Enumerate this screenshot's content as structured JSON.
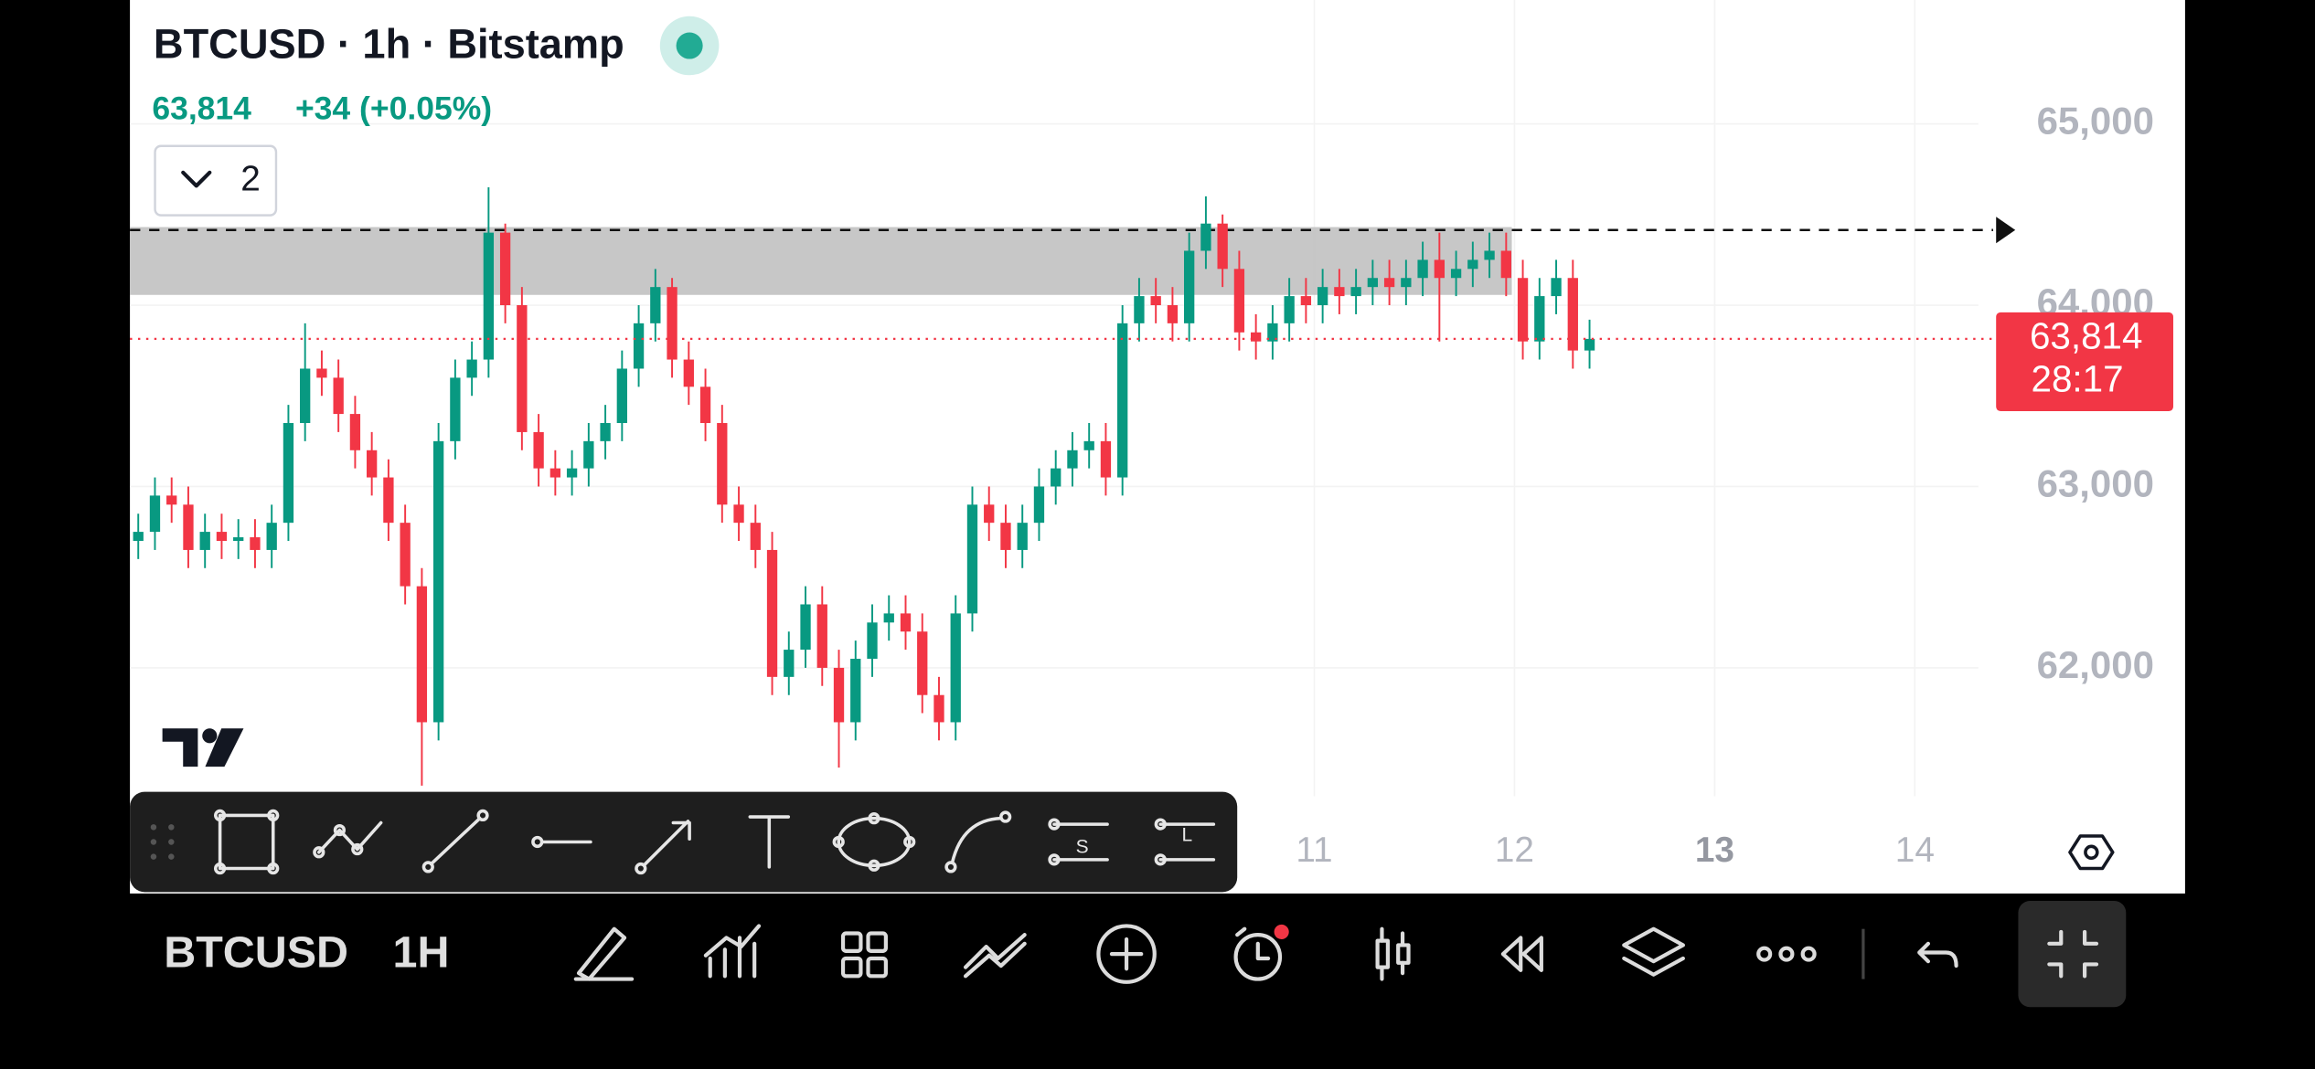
{
  "header": {
    "title": "BTCUSD · 1h · Bitstamp",
    "price": "63,814",
    "change": "+34 (+0.05%)",
    "indicators": "2"
  },
  "chart_data": {
    "type": "candlestick",
    "open": [
      62700,
      62750,
      62950,
      62900,
      62650,
      62750,
      62700,
      62720,
      62650,
      62800,
      63350,
      63650,
      63600,
      63400,
      63200,
      63050,
      62800,
      62450,
      61700,
      63250,
      63600,
      63700,
      64400,
      64000,
      63300,
      63100,
      63050,
      63100,
      63250,
      63350,
      63650,
      63900,
      64100,
      63700,
      63550,
      63350,
      62900,
      62800,
      62650,
      61950,
      62100,
      62350,
      62000,
      61700,
      62050,
      62250,
      62300,
      62200,
      61850,
      61700,
      62300,
      62900,
      62800,
      62650,
      62800,
      63000,
      63100,
      63200,
      63250,
      63050,
      63900,
      64050,
      64000,
      63900,
      64300,
      64450,
      64200,
      63850,
      63800,
      63900,
      64050,
      64000,
      64100,
      64050,
      64100,
      64150,
      64100,
      64150,
      64250,
      64150,
      64200,
      64250,
      64300,
      64150,
      63800,
      64050,
      64150,
      63750
    ],
    "high": [
      62850,
      63050,
      63050,
      63000,
      62850,
      62850,
      62820,
      62820,
      62900,
      63450,
      63900,
      63750,
      63700,
      63500,
      63300,
      63150,
      62900,
      62550,
      63350,
      63700,
      63800,
      64650,
      64450,
      64100,
      63400,
      63200,
      63200,
      63350,
      63450,
      63750,
      64000,
      64200,
      64150,
      63800,
      63650,
      63450,
      63000,
      62900,
      62750,
      62200,
      62450,
      62450,
      62100,
      62150,
      62350,
      62400,
      62400,
      62300,
      61950,
      62400,
      63000,
      63000,
      62900,
      62900,
      63100,
      63200,
      63300,
      63350,
      63350,
      64000,
      64150,
      64150,
      64100,
      64400,
      64600,
      64500,
      64300,
      63950,
      64000,
      64150,
      64150,
      64200,
      64200,
      64200,
      64250,
      64250,
      64250,
      64350,
      64400,
      64300,
      64350,
      64400,
      64400,
      64250,
      64150,
      64250,
      64250,
      63920
    ],
    "low": [
      62600,
      62650,
      62800,
      62550,
      62550,
      62600,
      62600,
      62550,
      62550,
      62700,
      63250,
      63500,
      63300,
      63100,
      62950,
      62700,
      62350,
      61350,
      61600,
      63150,
      63500,
      63600,
      63900,
      63200,
      63000,
      62950,
      62950,
      63000,
      63150,
      63250,
      63550,
      63800,
      63600,
      63450,
      63250,
      62800,
      62700,
      62550,
      61850,
      61850,
      62000,
      61900,
      61450,
      61600,
      61950,
      62150,
      62100,
      61750,
      61600,
      61600,
      62200,
      62700,
      62550,
      62550,
      62700,
      62900,
      63000,
      63100,
      62950,
      62950,
      63800,
      63900,
      63800,
      63800,
      64200,
      64100,
      63750,
      63700,
      63700,
      63800,
      63900,
      63900,
      63950,
      63950,
      64000,
      64000,
      64000,
      64050,
      63800,
      64050,
      64100,
      64150,
      64050,
      63700,
      63700,
      63950,
      63650,
      63650
    ],
    "close": [
      62750,
      62950,
      62900,
      62650,
      62750,
      62700,
      62720,
      62650,
      62800,
      63350,
      63650,
      63600,
      63400,
      63200,
      63050,
      62800,
      62450,
      61700,
      63250,
      63600,
      63700,
      64400,
      64000,
      63300,
      63100,
      63050,
      63100,
      63250,
      63350,
      63650,
      63900,
      64100,
      63700,
      63550,
      63350,
      62900,
      62800,
      62650,
      61950,
      62100,
      62350,
      62000,
      61700,
      62050,
      62250,
      62300,
      62200,
      61850,
      61700,
      62300,
      62900,
      62800,
      62650,
      62800,
      63000,
      63100,
      63200,
      63250,
      63050,
      63900,
      64050,
      64000,
      63900,
      64300,
      64450,
      64200,
      63850,
      63800,
      63900,
      64050,
      64000,
      64100,
      64050,
      64100,
      64150,
      64100,
      64150,
      64250,
      64150,
      64200,
      64250,
      64300,
      64150,
      63800,
      64050,
      64150,
      63750,
      63814
    ],
    "up_color": "#089981",
    "down_color": "#f23645",
    "ylim": [
      61170,
      65683
    ],
    "yticks": [
      {
        "value": 62000,
        "label": "62,000"
      },
      {
        "value": 63000,
        "label": "63,000"
      },
      {
        "value": 64000,
        "label": "64,000"
      },
      {
        "value": 65000,
        "label": "65,000"
      }
    ],
    "xlim": [
      0,
      123.2
    ],
    "xticks": [
      {
        "value": 71,
        "label": "11"
      },
      {
        "value": 83,
        "label": "12"
      },
      {
        "value": 95,
        "label": "13"
      },
      {
        "value": 107,
        "label": "14"
      }
    ],
    "last_price": {
      "value": 63814,
      "label": "63,814"
    },
    "countdown": "28:17"
  },
  "drawing_toolbar": {
    "icons": [
      "S",
      "L"
    ]
  },
  "bottom_toolbar": {
    "symbol": "BTCUSD",
    "interval": "1H"
  }
}
